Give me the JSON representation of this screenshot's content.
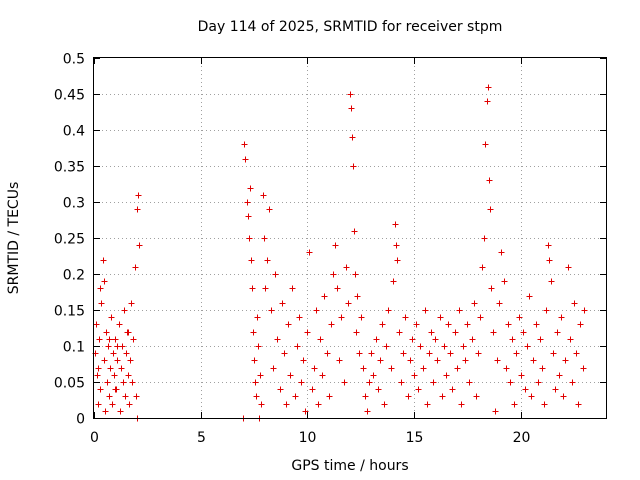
{
  "chart_data": {
    "type": "scatter",
    "title": "Day 114 of 2025, SRMTID for receiver stpm",
    "xlabel": "GPS time / hours",
    "ylabel": "SRMTID / TECUs",
    "xlim": [
      0,
      24
    ],
    "ylim": [
      0,
      0.5
    ],
    "xticks": [
      0,
      5,
      10,
      15,
      20
    ],
    "yticks": [
      0,
      0.05,
      0.1,
      0.15,
      0.2,
      0.25,
      0.3,
      0.35,
      0.4,
      0.45,
      0.5
    ],
    "xtick_labels": [
      "0",
      "5",
      "10",
      "15",
      "20"
    ],
    "ytick_labels": [
      "0",
      "0.05",
      "0.1",
      "0.15",
      "0.2",
      "0.25",
      "0.3",
      "0.35",
      "0.4",
      "0.45",
      "0.5"
    ],
    "grid": true,
    "marker": "+",
    "color": "#e00000",
    "series": [
      {
        "name": "SRMTID",
        "points": [
          [
            0.05,
            0.09
          ],
          [
            0.1,
            0.13
          ],
          [
            0.15,
            0.06
          ],
          [
            0.2,
            0.02
          ],
          [
            0.25,
            0.11
          ],
          [
            0.3,
            0.04
          ],
          [
            0.35,
            0.16
          ],
          [
            0.4,
            0.22
          ],
          [
            0.45,
            0.08
          ],
          [
            0.5,
            0.01
          ],
          [
            0.55,
            0.12
          ],
          [
            0.6,
            0.05
          ],
          [
            0.65,
            0.1
          ],
          [
            0.7,
            0.03
          ],
          [
            0.75,
            0.07
          ],
          [
            0.8,
            0.14
          ],
          [
            0.85,
            0.02
          ],
          [
            0.9,
            0.09
          ],
          [
            0.95,
            0.06
          ],
          [
            1.0,
            0.11
          ],
          [
            1.05,
            0.04
          ],
          [
            1.1,
            0.08
          ],
          [
            1.15,
            0.13
          ],
          [
            1.2,
            0.01
          ],
          [
            1.25,
            0.07
          ],
          [
            1.3,
            0.1
          ],
          [
            1.35,
            0.05
          ],
          [
            1.4,
            0.15
          ],
          [
            1.45,
            0.03
          ],
          [
            1.5,
            0.09
          ],
          [
            1.55,
            0.12
          ],
          [
            1.6,
            0.06
          ],
          [
            1.65,
            0.02
          ],
          [
            1.7,
            0.08
          ],
          [
            1.75,
            0.16
          ],
          [
            1.8,
            0.05
          ],
          [
            1.85,
            0.11
          ],
          [
            1.9,
            0.21
          ],
          [
            1.95,
            0.03
          ],
          [
            2.0,
            0.29
          ],
          [
            2.05,
            0.31
          ],
          [
            2.1,
            0.24
          ],
          [
            2.0,
            0.0
          ],
          [
            0.3,
            0.18
          ],
          [
            0.45,
            0.19
          ],
          [
            0.7,
            0.11
          ],
          [
            1.1,
            0.1
          ],
          [
            0.2,
            0.07
          ],
          [
            1.6,
            0.12
          ],
          [
            1.0,
            0.04
          ],
          [
            7.0,
            0.0
          ],
          [
            7.05,
            0.38
          ],
          [
            7.1,
            0.36
          ],
          [
            7.15,
            0.3
          ],
          [
            7.2,
            0.28
          ],
          [
            7.25,
            0.25
          ],
          [
            7.3,
            0.32
          ],
          [
            7.35,
            0.22
          ],
          [
            7.4,
            0.18
          ],
          [
            7.45,
            0.12
          ],
          [
            7.5,
            0.08
          ],
          [
            7.55,
            0.05
          ],
          [
            7.6,
            0.03
          ],
          [
            7.65,
            0.14
          ],
          [
            7.7,
            0.1
          ],
          [
            7.75,
            0.0
          ],
          [
            7.8,
            0.06
          ],
          [
            7.85,
            0.02
          ],
          [
            7.9,
            0.31
          ],
          [
            7.95,
            0.25
          ],
          [
            8.0,
            0.18
          ],
          [
            8.1,
            0.22
          ],
          [
            8.2,
            0.29
          ],
          [
            8.3,
            0.15
          ],
          [
            8.4,
            0.07
          ],
          [
            8.5,
            0.2
          ],
          [
            8.6,
            0.11
          ],
          [
            8.7,
            0.04
          ],
          [
            8.8,
            0.16
          ],
          [
            8.9,
            0.09
          ],
          [
            9.0,
            0.02
          ],
          [
            9.1,
            0.13
          ],
          [
            9.2,
            0.06
          ],
          [
            9.3,
            0.18
          ],
          [
            9.4,
            0.03
          ],
          [
            9.5,
            0.1
          ],
          [
            9.6,
            0.14
          ],
          [
            9.7,
            0.05
          ],
          [
            9.8,
            0.08
          ],
          [
            9.9,
            0.01
          ],
          [
            10.0,
            0.12
          ],
          [
            10.1,
            0.23
          ],
          [
            10.2,
            0.04
          ],
          [
            10.3,
            0.07
          ],
          [
            10.4,
            0.15
          ],
          [
            10.5,
            0.02
          ],
          [
            10.6,
            0.11
          ],
          [
            10.7,
            0.06
          ],
          [
            10.8,
            0.17
          ],
          [
            10.9,
            0.09
          ],
          [
            11.0,
            0.03
          ],
          [
            11.1,
            0.13
          ],
          [
            11.2,
            0.2
          ],
          [
            11.3,
            0.24
          ],
          [
            11.4,
            0.18
          ],
          [
            11.5,
            0.08
          ],
          [
            11.6,
            0.14
          ],
          [
            11.7,
            0.05
          ],
          [
            11.8,
            0.21
          ],
          [
            11.9,
            0.16
          ],
          [
            12.0,
            0.45
          ],
          [
            12.05,
            0.43
          ],
          [
            12.1,
            0.39
          ],
          [
            12.15,
            0.35
          ],
          [
            12.2,
            0.26
          ],
          [
            12.25,
            0.2
          ],
          [
            12.3,
            0.12
          ],
          [
            12.35,
            0.17
          ],
          [
            12.4,
            0.09
          ],
          [
            12.5,
            0.14
          ],
          [
            12.6,
            0.07
          ],
          [
            12.7,
            0.03
          ],
          [
            12.8,
            0.01
          ],
          [
            12.9,
            0.05
          ],
          [
            13.0,
            0.09
          ],
          [
            13.1,
            0.06
          ],
          [
            13.2,
            0.11
          ],
          [
            13.3,
            0.04
          ],
          [
            13.4,
            0.08
          ],
          [
            13.5,
            0.13
          ],
          [
            13.6,
            0.02
          ],
          [
            13.7,
            0.1
          ],
          [
            13.8,
            0.15
          ],
          [
            13.9,
            0.07
          ],
          [
            14.0,
            0.19
          ],
          [
            14.1,
            0.27
          ],
          [
            14.15,
            0.24
          ],
          [
            14.2,
            0.22
          ],
          [
            14.3,
            0.12
          ],
          [
            14.4,
            0.05
          ],
          [
            14.5,
            0.09
          ],
          [
            14.6,
            0.14
          ],
          [
            14.7,
            0.03
          ],
          [
            14.8,
            0.08
          ],
          [
            14.9,
            0.11
          ],
          [
            15.0,
            0.06
          ],
          [
            15.1,
            0.13
          ],
          [
            15.2,
            0.04
          ],
          [
            15.3,
            0.1
          ],
          [
            15.4,
            0.07
          ],
          [
            15.5,
            0.15
          ],
          [
            15.6,
            0.02
          ],
          [
            15.7,
            0.09
          ],
          [
            15.8,
            0.12
          ],
          [
            15.9,
            0.05
          ],
          [
            16.0,
            0.11
          ],
          [
            16.1,
            0.08
          ],
          [
            16.2,
            0.14
          ],
          [
            16.3,
            0.03
          ],
          [
            16.4,
            0.1
          ],
          [
            16.5,
            0.06
          ],
          [
            16.6,
            0.13
          ],
          [
            16.7,
            0.09
          ],
          [
            16.8,
            0.04
          ],
          [
            16.9,
            0.12
          ],
          [
            17.0,
            0.07
          ],
          [
            17.1,
            0.15
          ],
          [
            17.2,
            0.02
          ],
          [
            17.3,
            0.1
          ],
          [
            17.4,
            0.08
          ],
          [
            17.5,
            0.13
          ],
          [
            17.6,
            0.05
          ],
          [
            17.7,
            0.11
          ],
          [
            17.8,
            0.16
          ],
          [
            17.9,
            0.03
          ],
          [
            18.0,
            0.09
          ],
          [
            18.1,
            0.14
          ],
          [
            18.2,
            0.21
          ],
          [
            18.3,
            0.25
          ],
          [
            18.35,
            0.38
          ],
          [
            18.4,
            0.44
          ],
          [
            18.45,
            0.46
          ],
          [
            18.5,
            0.33
          ],
          [
            18.55,
            0.29
          ],
          [
            18.6,
            0.18
          ],
          [
            18.7,
            0.12
          ],
          [
            18.8,
            0.01
          ],
          [
            18.9,
            0.08
          ],
          [
            19.0,
            0.16
          ],
          [
            19.1,
            0.23
          ],
          [
            19.2,
            0.19
          ],
          [
            19.3,
            0.07
          ],
          [
            19.4,
            0.13
          ],
          [
            19.5,
            0.05
          ],
          [
            19.6,
            0.11
          ],
          [
            19.7,
            0.02
          ],
          [
            19.8,
            0.09
          ],
          [
            19.9,
            0.14
          ],
          [
            20.0,
            0.06
          ],
          [
            20.1,
            0.12
          ],
          [
            20.2,
            0.04
          ],
          [
            20.3,
            0.1
          ],
          [
            20.4,
            0.17
          ],
          [
            20.5,
            0.03
          ],
          [
            20.6,
            0.08
          ],
          [
            20.7,
            0.13
          ],
          [
            20.8,
            0.05
          ],
          [
            20.9,
            0.11
          ],
          [
            21.0,
            0.07
          ],
          [
            21.1,
            0.02
          ],
          [
            21.2,
            0.15
          ],
          [
            21.3,
            0.24
          ],
          [
            21.35,
            0.22
          ],
          [
            21.4,
            0.19
          ],
          [
            21.5,
            0.09
          ],
          [
            21.6,
            0.04
          ],
          [
            21.7,
            0.12
          ],
          [
            21.8,
            0.06
          ],
          [
            21.9,
            0.14
          ],
          [
            22.0,
            0.03
          ],
          [
            22.1,
            0.08
          ],
          [
            22.2,
            0.21
          ],
          [
            22.3,
            0.11
          ],
          [
            22.4,
            0.05
          ],
          [
            22.5,
            0.16
          ],
          [
            22.6,
            0.09
          ],
          [
            22.7,
            0.02
          ],
          [
            22.8,
            0.13
          ],
          [
            22.9,
            0.07
          ],
          [
            22.95,
            0.15
          ]
        ]
      }
    ]
  }
}
